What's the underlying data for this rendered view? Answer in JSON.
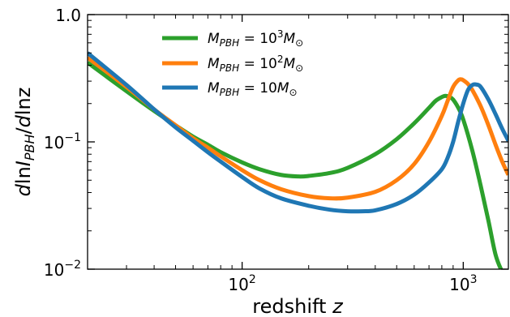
{
  "chart_data": {
    "type": "line",
    "title": "",
    "xlabel": {
      "main": "redshift ",
      "italic": "z"
    },
    "ylabel": {
      "p1": "d",
      "p2": "ln",
      "p3": "I",
      "sub": "PBH",
      "p4": "/",
      "p5": "d",
      "p6": "lnz"
    },
    "xscale": "log",
    "yscale": "log",
    "xlim": [
      20,
      1600
    ],
    "ylim": [
      0.01,
      1.0
    ],
    "xticks": [
      {
        "value": 100,
        "base": "10",
        "exp": "2"
      },
      {
        "value": 1000,
        "base": "10",
        "exp": "3"
      }
    ],
    "yticks": [
      {
        "value": 0.01,
        "base": "10",
        "exp": "−2"
      },
      {
        "value": 0.1,
        "base": "10",
        "exp": "−1"
      },
      {
        "value": 1.0,
        "base": "1.0",
        "exp": ""
      }
    ],
    "legend": {
      "placement": "top-left"
    },
    "series": [
      {
        "name": "M_PBH = 10^3 M_⊙",
        "label": {
          "m": "M",
          "sub": "PBH",
          "eq": " = 10",
          "sup": "3",
          "m2": "M",
          "sun": "⊙"
        },
        "color": "#2ca02c",
        "x": [
          20,
          30,
          40,
          50,
          60,
          70,
          80,
          100,
          120,
          150,
          180,
          200,
          250,
          300,
          400,
          500,
          600,
          700,
          750,
          800,
          830,
          870,
          900,
          950,
          1000,
          1100,
          1200,
          1300,
          1400,
          1500,
          1600
        ],
        "y": [
          0.42,
          0.25,
          0.175,
          0.135,
          0.11,
          0.095,
          0.083,
          0.069,
          0.061,
          0.055,
          0.0535,
          0.054,
          0.057,
          0.0625,
          0.08,
          0.105,
          0.14,
          0.185,
          0.21,
          0.225,
          0.23,
          0.225,
          0.215,
          0.185,
          0.15,
          0.085,
          0.045,
          0.024,
          0.013,
          0.0095,
          0.0075
        ]
      },
      {
        "name": "M_PBH = 10^2 M_⊙",
        "label": {
          "m": "M",
          "sub": "PBH",
          "eq": " = 10",
          "sup": "2",
          "m2": "M",
          "sun": "⊙"
        },
        "color": "#ff7f0e",
        "x": [
          20,
          30,
          40,
          50,
          60,
          70,
          80,
          100,
          120,
          150,
          200,
          250,
          300,
          400,
          500,
          600,
          700,
          800,
          850,
          900,
          950,
          980,
          1000,
          1050,
          1100,
          1200,
          1300,
          1400,
          1500,
          1600
        ],
        "y": [
          0.46,
          0.27,
          0.18,
          0.135,
          0.107,
          0.09,
          0.077,
          0.06,
          0.05,
          0.0425,
          0.0375,
          0.036,
          0.0365,
          0.0405,
          0.05,
          0.067,
          0.1,
          0.16,
          0.21,
          0.27,
          0.305,
          0.31,
          0.305,
          0.285,
          0.255,
          0.19,
          0.135,
          0.095,
          0.07,
          0.055
        ]
      },
      {
        "name": "M_PBH = 10M_⊙",
        "label": {
          "m": "M",
          "sub": "PBH",
          "eq": " = 10",
          "sup": "",
          "m2": "M",
          "sun": "⊙"
        },
        "color": "#1f77b4",
        "x": [
          20,
          30,
          40,
          50,
          60,
          70,
          80,
          100,
          120,
          150,
          200,
          250,
          300,
          350,
          400,
          500,
          600,
          700,
          800,
          850,
          900,
          950,
          1000,
          1050,
          1100,
          1150,
          1200,
          1300,
          1400,
          1500,
          1600
        ],
        "y": [
          0.5,
          0.28,
          0.18,
          0.13,
          0.102,
          0.083,
          0.07,
          0.053,
          0.043,
          0.036,
          0.0315,
          0.0293,
          0.0285,
          0.0285,
          0.029,
          0.0325,
          0.0385,
          0.048,
          0.061,
          0.075,
          0.1,
          0.145,
          0.2,
          0.255,
          0.28,
          0.282,
          0.27,
          0.215,
          0.165,
          0.127,
          0.102
        ]
      }
    ]
  }
}
